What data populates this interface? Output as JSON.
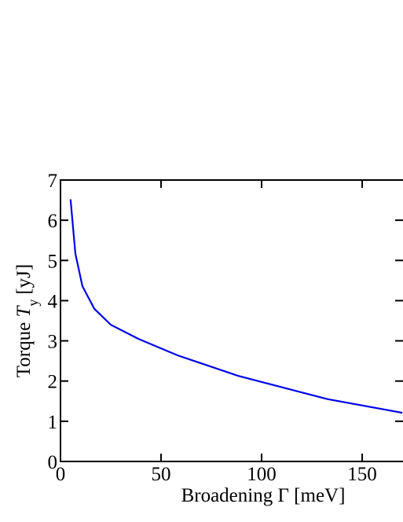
{
  "chart_data": {
    "type": "line",
    "x_label": "Broadening Γ [meV]",
    "y_label": [
      "Torque",
      "T",
      "y",
      "[yJ]"
    ],
    "x": [
      5,
      7.4,
      10.9,
      16.8,
      25,
      38.7,
      58.2,
      88.3,
      132.8,
      170
    ],
    "series": [
      {
        "color": "#0000e6",
        "values": [
          6.52,
          5.17,
          4.36,
          3.8,
          3.4,
          3.05,
          2.64,
          2.13,
          1.55,
          1.21
        ]
      }
    ],
    "xlim": [
      0,
      170.3
    ],
    "xticks": [
      0,
      50,
      100,
      150
    ],
    "ylim": [
      0,
      7
    ],
    "yticks": [
      0,
      1,
      2,
      3,
      4,
      5,
      6,
      7
    ]
  }
}
